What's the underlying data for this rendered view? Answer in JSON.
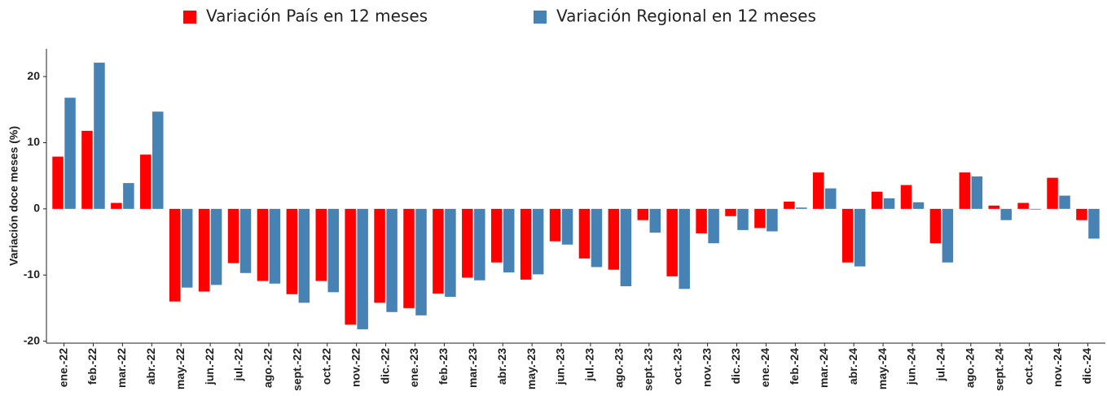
{
  "chart_data": {
    "type": "bar",
    "y_label": "Variación doce meses (%)",
    "categories": [
      "ene.-22",
      "feb.-22",
      "mar.-22",
      "abr.-22",
      "may.-22",
      "jun.-22",
      "jul.-22",
      "ago.-22",
      "sept.-22",
      "oct.-22",
      "nov.-22",
      "dic.-22",
      "ene.-23",
      "feb.-23",
      "mar.-23",
      "abr.-23",
      "may.-23",
      "jun.-23",
      "jul.-23",
      "ago.-23",
      "sept.-23",
      "oct.-23",
      "nov.-23",
      "dic.-23",
      "ene.-24",
      "feb.-24",
      "mar.-24",
      "abr.-24",
      "may.-24",
      "jun.-24",
      "jul.-24",
      "ago.-24",
      "sept.-24",
      "oct.-24",
      "nov.-24",
      "dic.-24"
    ],
    "series": [
      {
        "name": "Variación País en 12 meses",
        "color": "#ff0000",
        "values": [
          7.9,
          11.8,
          0.9,
          8.2,
          -14.0,
          -12.5,
          -8.2,
          -10.9,
          -12.9,
          -10.9,
          -17.5,
          -14.2,
          -15.0,
          -12.8,
          -10.4,
          -8.1,
          -10.7,
          -4.9,
          -7.5,
          -9.2,
          -1.7,
          -10.2,
          -3.7,
          -1.1,
          -2.9,
          1.1,
          5.5,
          -8.1,
          2.6,
          3.6,
          -5.2,
          5.5,
          0.5,
          0.9,
          4.7,
          -1.7
        ]
      },
      {
        "name": "Variación Regional en 12 meses",
        "color": "#4682b4",
        "values": [
          16.8,
          22.1,
          3.9,
          14.7,
          -11.9,
          -11.5,
          -9.7,
          -11.3,
          -14.2,
          -12.6,
          -18.2,
          -15.6,
          -16.1,
          -13.3,
          -10.8,
          -9.6,
          -9.9,
          -5.4,
          -8.8,
          -11.7,
          -3.6,
          -12.1,
          -5.2,
          -3.2,
          -3.4,
          0.2,
          3.1,
          -8.7,
          1.6,
          1.0,
          -8.1,
          4.9,
          -1.7,
          -0.1,
          2.0,
          -4.5
        ]
      }
    ],
    "ylim": [
      -20.3,
      24.2
    ],
    "yticks": [
      -20,
      -10,
      0,
      10,
      20
    ],
    "grid": false,
    "legend": "top"
  }
}
